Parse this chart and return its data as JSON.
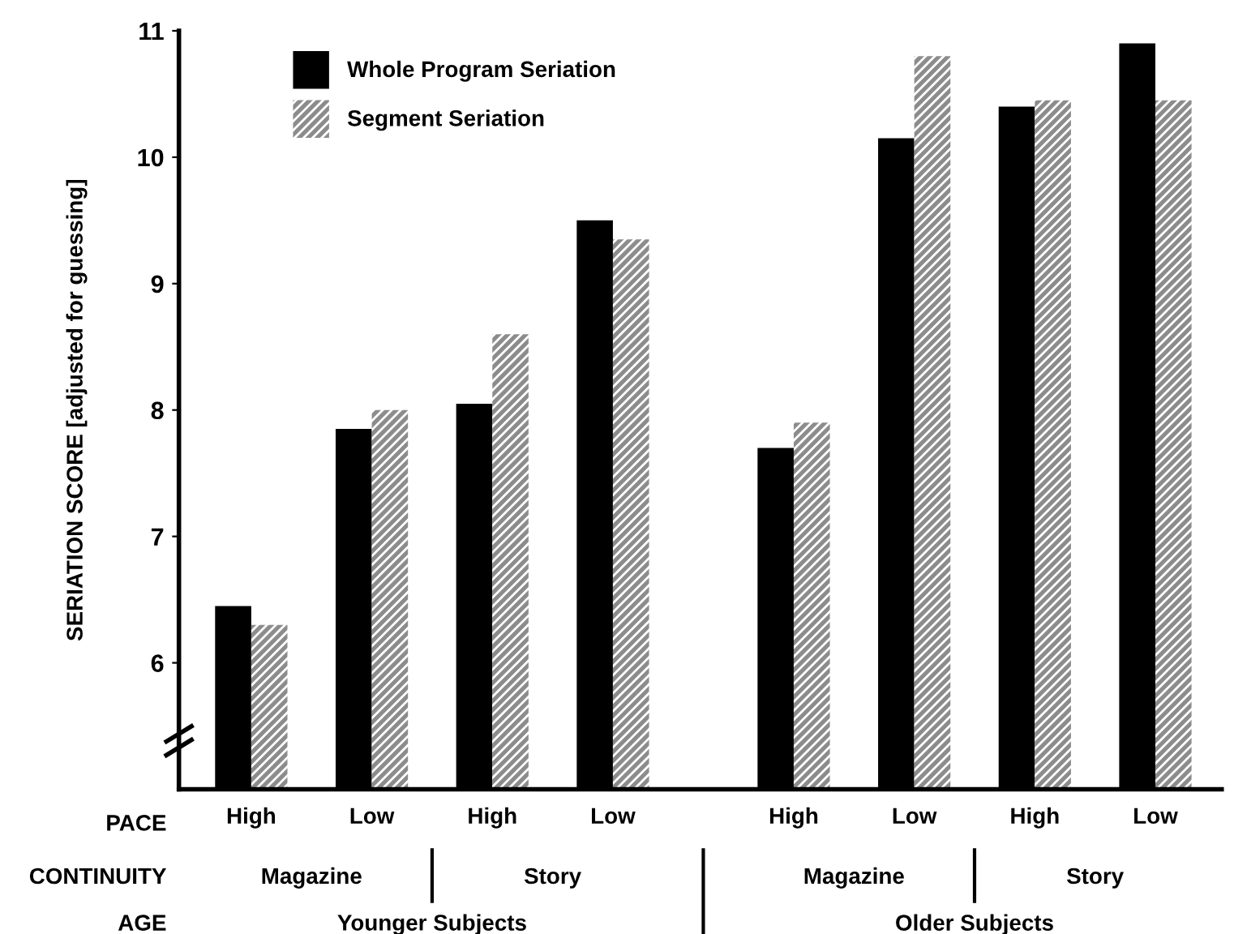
{
  "chart_data": {
    "type": "bar",
    "ylabel": "SERIATION SCORE [adjusted for guessing]",
    "categories": [
      "High",
      "Low",
      "High",
      "Low",
      "High",
      "Low",
      "High",
      "Low"
    ],
    "series": [
      {
        "name": "Whole Program Seriation",
        "color": "#000000",
        "values": [
          6.45,
          7.85,
          8.05,
          9.5,
          7.7,
          10.15,
          10.4,
          10.9
        ]
      },
      {
        "name": "Segment Seriation",
        "color": "#8c8c8c",
        "values": [
          6.3,
          8.0,
          8.6,
          9.35,
          7.9,
          10.8,
          10.45,
          10.45
        ]
      }
    ],
    "ylim": [
      5,
      11
    ],
    "yticks": [
      6,
      7,
      8,
      9,
      10,
      11
    ],
    "annotations": [
      "PACE",
      "CONTINUITY",
      "AGE",
      "Magazine",
      "Story",
      "Magazine",
      "Story",
      "Younger Subjects",
      "Older Subjects"
    ],
    "legend": "top left",
    "grid": false
  }
}
